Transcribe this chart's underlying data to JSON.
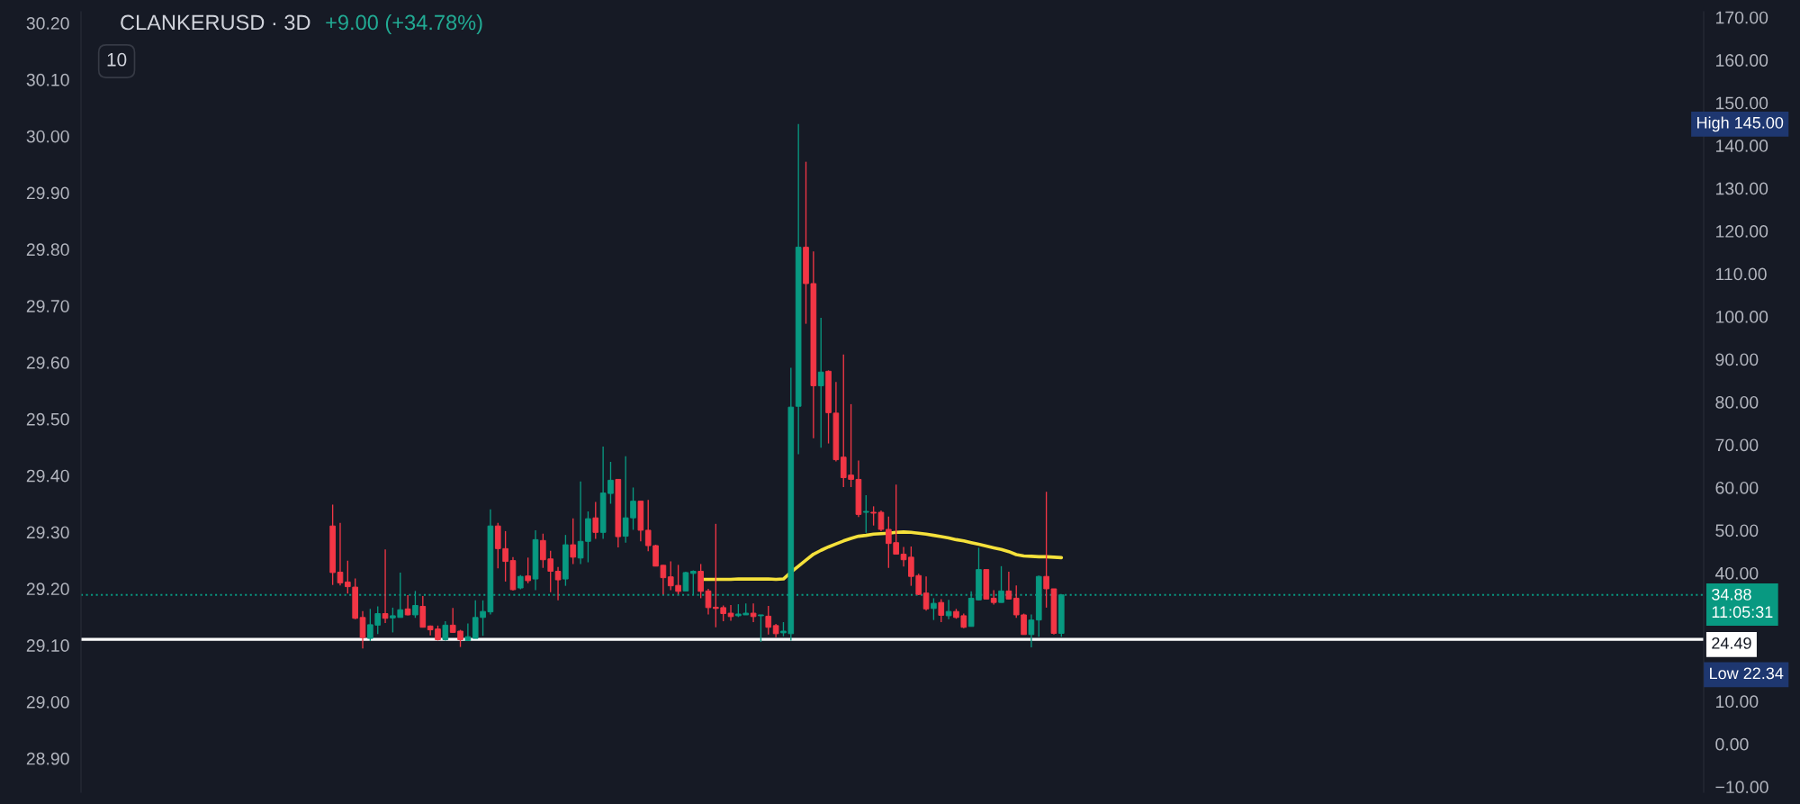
{
  "chart_data": {
    "type": "candlestick",
    "title": "CLANKERUSD · 3D",
    "subtitle": "+9.00 (+34.78%)",
    "categories": [
      null,
      null,
      null,
      null,
      null,
      null,
      null,
      null,
      null,
      null,
      null,
      null,
      null,
      null,
      null,
      null,
      null,
      null,
      null,
      null,
      null,
      null,
      null,
      null,
      null,
      null,
      null,
      null,
      null,
      null,
      null,
      null,
      null,
      null,
      null,
      null,
      null,
      null,
      null,
      null,
      null,
      null,
      null,
      null,
      null,
      null,
      null,
      null,
      null,
      null,
      null,
      null,
      null,
      null,
      null,
      null,
      null,
      null,
      null,
      null,
      null,
      null,
      null,
      null,
      null,
      null,
      null,
      null,
      null,
      null,
      null,
      null,
      null,
      null,
      null,
      null,
      null,
      null,
      null,
      null,
      null,
      null,
      null,
      null,
      null,
      null,
      null,
      null,
      null,
      null,
      null,
      null,
      null,
      null,
      null,
      null,
      null,
      null,
      null,
      null,
      null,
      null,
      null,
      null,
      null,
      null,
      null,
      null,
      null,
      null,
      null,
      null,
      null,
      null,
      null,
      null,
      null,
      null,
      null,
      null,
      null,
      null,
      null,
      null,
      null,
      null,
      null,
      null,
      null,
      null,
      null,
      null,
      null,
      null,
      null,
      null,
      null,
      null,
      null,
      null,
      null,
      null,
      null,
      null,
      null,
      null,
      null,
      null,
      null,
      null,
      null,
      null,
      null,
      null,
      null,
      null,
      null,
      null,
      null,
      null,
      null,
      null,
      null,
      null,
      null,
      null,
      null,
      null,
      null,
      null,
      null,
      null,
      null,
      null,
      null,
      null,
      null,
      null,
      null,
      null,
      null,
      null,
      null,
      null,
      null,
      null,
      null,
      null,
      null,
      null,
      null,
      null,
      null,
      null,
      null,
      null,
      null,
      null,
      null,
      null,
      null,
      null,
      null,
      null,
      null,
      null,
      null,
      null,
      null,
      null,
      null,
      null,
      null,
      null,
      null,
      null
    ],
    "ohlc": [
      null,
      null,
      null,
      null,
      null,
      null,
      null,
      null,
      null,
      null,
      null,
      null,
      null,
      null,
      null,
      null,
      null,
      null,
      null,
      null,
      null,
      null,
      null,
      null,
      null,
      null,
      null,
      null,
      null,
      null,
      null,
      null,
      null,
      [
        51.0,
        56.0,
        37.2,
        40.1
      ],
      [
        40.2,
        51.7,
        37.1,
        37.7
      ],
      [
        37.9,
        42.9,
        35.2,
        36.8
      ],
      [
        36.7,
        38.7,
        29.2,
        29.4
      ],
      [
        29.6,
        31.1,
        22.34,
        24.9
      ],
      [
        24.7,
        31.6,
        24.1,
        27.9
      ],
      [
        27.8,
        32.2,
        25.7,
        30.5
      ],
      [
        30.5,
        45.5,
        28.3,
        29.4
      ],
      [
        29.5,
        31.9,
        26.1,
        30.0
      ],
      [
        29.6,
        40.1,
        29.6,
        31.4
      ],
      [
        31.6,
        34.8,
        30.1,
        30.2
      ],
      [
        30.2,
        35.8,
        29.5,
        32.4
      ],
      [
        32.2,
        34.6,
        27.3,
        27.3
      ],
      [
        27.6,
        27.7,
        25.4,
        26.7
      ],
      [
        26.9,
        27.7,
        24.2,
        24.4
      ],
      [
        24.4,
        28.7,
        24.2,
        27.8
      ],
      [
        27.8,
        31.8,
        26.0,
        26.1
      ],
      [
        26.4,
        26.7,
        22.7,
        24.4
      ],
      [
        24.2,
        28.2,
        24.1,
        25.1
      ],
      [
        24.7,
        33.6,
        24.7,
        29.6
      ],
      [
        29.6,
        33.6,
        25.3,
        31.0
      ],
      [
        30.9,
        54.9,
        30.3,
        51.0
      ],
      [
        51.0,
        51.7,
        41.1,
        45.7
      ],
      [
        45.7,
        49.8,
        38.0,
        42.7
      ],
      [
        42.9,
        43.7,
        35.9,
        36.1
      ],
      [
        36.5,
        39.5,
        36.2,
        39.2
      ],
      [
        39.3,
        43.6,
        37.6,
        38.2
      ],
      [
        38.6,
        50.0,
        36.0,
        47.8
      ],
      [
        47.6,
        49.2,
        41.2,
        43.1
      ],
      [
        43.3,
        45.2,
        35.5,
        40.4
      ],
      [
        40.4,
        41.4,
        33.6,
        38.4
      ],
      [
        38.6,
        48.9,
        37.0,
        46.6
      ],
      [
        46.6,
        52.8,
        42.1,
        43.7
      ],
      [
        43.5,
        61.4,
        42.1,
        47.4
      ],
      [
        47.4,
        54.4,
        42.5,
        52.7
      ],
      [
        52.9,
        56.6,
        48.0,
        49.5
      ],
      [
        49.5,
        69.6,
        48.0,
        58.7
      ],
      [
        58.6,
        66.0,
        56.2,
        61.7
      ],
      [
        61.9,
        61.9,
        46.0,
        48.5
      ],
      [
        48.6,
        67.3,
        47.1,
        52.9
      ],
      [
        52.9,
        60.0,
        50.1,
        56.8
      ],
      [
        56.8,
        56.8,
        47.4,
        50.0
      ],
      [
        50.0,
        57.1,
        45.1,
        46.4
      ],
      [
        46.4,
        46.6,
        41.6,
        41.6
      ],
      [
        41.8,
        41.9,
        35.0,
        38.9
      ],
      [
        39.1,
        42.7,
        36.0,
        37.0
      ],
      [
        37.1,
        41.9,
        35.0,
        35.7
      ],
      [
        35.8,
        40.3,
        35.8,
        40.1
      ],
      [
        39.9,
        40.6,
        34.8,
        40.4
      ],
      [
        40.4,
        42.1,
        34.1,
        35.7
      ],
      [
        35.8,
        36.3,
        30.3,
        31.9
      ],
      [
        32.0,
        51.5,
        27.3,
        31.7
      ],
      [
        31.9,
        32.4,
        28.7,
        30.5
      ],
      [
        30.6,
        32.5,
        28.8,
        29.8
      ],
      [
        30.0,
        32.7,
        29.7,
        30.4
      ],
      [
        30.2,
        32.9,
        30.2,
        30.6
      ],
      [
        30.6,
        32.9,
        28.5,
        29.8
      ],
      [
        30.0,
        30.2,
        23.9,
        30.2
      ],
      [
        29.9,
        32.3,
        25.6,
        27.3
      ],
      [
        27.7,
        28.1,
        25.0,
        25.8
      ],
      [
        26.0,
        28.5,
        25.2,
        26.4
      ],
      [
        25.8,
        88.0,
        24.2,
        78.8
      ],
      [
        79.0,
        145.0,
        67.8,
        116.2
      ],
      [
        116.2,
        136.2,
        98.3,
        107.7
      ],
      [
        107.7,
        115.2,
        71.5,
        83.8
      ],
      [
        83.8,
        99.7,
        69.3,
        87.0
      ],
      [
        87.2,
        87.4,
        70.3,
        77.5
      ],
      [
        77.4,
        84.7,
        66.1,
        66.5
      ],
      [
        67.1,
        91.1,
        60.1,
        62.3
      ],
      [
        62.9,
        79.5,
        60.1,
        61.9
      ],
      [
        61.9,
        66.3,
        53.1,
        53.7
      ],
      [
        54.2,
        58.2,
        49.4,
        54.4
      ],
      [
        54.2,
        55.6,
        51.1,
        54.0
      ],
      [
        54.2,
        54.6,
        49.8,
        50.2
      ],
      [
        50.2,
        53.2,
        41.2,
        46.9
      ],
      [
        47.1,
        60.7,
        44.4,
        44.4
      ],
      [
        44.4,
        46.1,
        41.5,
        43.1
      ],
      [
        43.7,
        46.2,
        37.0,
        39.2
      ],
      [
        39.4,
        39.8,
        34.8,
        35.0
      ],
      [
        35.3,
        39.2,
        31.2,
        31.6
      ],
      [
        31.7,
        34.1,
        29.0,
        32.9
      ],
      [
        33.1,
        33.9,
        28.5,
        30.1
      ],
      [
        30.0,
        33.7,
        29.2,
        31.0
      ],
      [
        31.0,
        31.6,
        29.3,
        29.6
      ],
      [
        30.0,
        30.5,
        27.1,
        27.3
      ],
      [
        27.5,
        35.7,
        27.5,
        34.1
      ],
      [
        33.7,
        45.9,
        33.6,
        40.8
      ],
      [
        40.8,
        40.8,
        33.9,
        33.9
      ],
      [
        34.1,
        36.0,
        32.6,
        33.1
      ],
      [
        33.1,
        41.6,
        33.1,
        35.8
      ],
      [
        35.8,
        40.3,
        33.8,
        33.9
      ],
      [
        34.1,
        37.1,
        29.5,
        30.2
      ],
      [
        30.2,
        30.5,
        25.6,
        25.6
      ],
      [
        25.6,
        30.3,
        22.6,
        29.0
      ],
      [
        29.0,
        39.4,
        25.1,
        39.2
      ],
      [
        39.2,
        59.0,
        31.9,
        36.3
      ],
      [
        36.3,
        36.3,
        25.6,
        25.88
      ],
      [
        25.88,
        34.88,
        25.1,
        34.88
      ],
      null,
      null,
      null,
      null,
      null,
      null,
      null,
      null,
      null,
      null,
      null,
      null,
      null,
      null,
      null,
      null,
      null,
      null,
      null,
      null,
      null,
      null,
      null,
      null,
      null,
      null,
      null,
      null,
      null,
      null,
      null,
      null,
      null,
      null,
      null,
      null,
      null,
      null,
      null,
      null,
      null,
      null,
      null,
      null,
      null,
      null,
      null,
      null,
      null,
      null,
      null,
      null,
      null,
      null,
      null,
      null,
      null,
      null,
      null,
      null,
      null,
      null,
      null,
      null,
      null,
      null,
      null,
      null,
      null,
      null,
      null,
      null,
      null,
      null,
      null,
      null,
      null,
      null,
      null,
      null,
      null,
      null,
      null,
      null,
      null
    ],
    "colors": [
      null,
      null,
      null,
      null,
      null,
      null,
      null,
      null,
      null,
      null,
      null,
      null,
      null,
      null,
      null,
      null,
      null,
      null,
      null,
      null,
      null,
      null,
      null,
      null,
      null,
      null,
      null,
      null,
      null,
      null,
      null,
      null,
      null,
      "#f23645",
      "#f23645",
      "#f23645",
      "#f23645",
      "#f23645",
      "#089981",
      "#089981",
      "#f23645",
      "#089981",
      "#089981",
      "#f23645",
      "#089981",
      "#f23645",
      "#f23645",
      "#f23645",
      "#089981",
      "#f23645",
      "#f23645",
      "#089981",
      "#089981",
      "#089981",
      "#089981",
      "#f23645",
      "#f23645",
      "#f23645",
      "#089981",
      "#f23645",
      "#089981",
      "#f23645",
      "#f23645",
      "#f23645",
      "#089981",
      "#f23645",
      "#089981",
      "#089981",
      "#f23645",
      "#089981",
      "#089981",
      "#f23645",
      "#089981",
      "#089981",
      "#f23645",
      "#f23645",
      "#f23645",
      "#f23645",
      "#f23645",
      "#f23645",
      "#089981",
      "#089981",
      "#f23645",
      "#f23645",
      "#f23645",
      "#f23645",
      "#f23645",
      "#089981",
      "#089981",
      "#f23645",
      "#089981",
      "#f23645",
      "#f23645",
      "#089981",
      "#089981",
      "#089981",
      "#f23645",
      "#f23645",
      "#089981",
      "#f23645",
      "#f23645",
      "#f23645",
      "#f23645",
      "#f23645",
      "#089981",
      "#f23645",
      "#f23645",
      "#f23645",
      "#f23645",
      "#f23645",
      "#f23645",
      "#f23645",
      "#f23645",
      "#089981",
      "#f23645",
      "#089981",
      "#f23645",
      "#f23645",
      "#089981",
      "#089981",
      "#f23645",
      "#f23645",
      "#089981",
      "#f23645",
      "#f23645",
      "#f23645",
      "#089981",
      "#089981",
      "#f23645",
      "#f23645",
      "#089981",
      null,
      null,
      null,
      null,
      null,
      null,
      null,
      null,
      null,
      null,
      null,
      null,
      null,
      null,
      null,
      null,
      null,
      null,
      null,
      null,
      null,
      null,
      null,
      null,
      null,
      null,
      null,
      null,
      null,
      null,
      null,
      null,
      null,
      null,
      null,
      null,
      null,
      null,
      null,
      null,
      null,
      null,
      null,
      null,
      null,
      null,
      null,
      null,
      null,
      null,
      null,
      null,
      null,
      null,
      null,
      null,
      null,
      null,
      null,
      null,
      null,
      null,
      null,
      null,
      null,
      null,
      null,
      null,
      null,
      null,
      null,
      null,
      null,
      null,
      null,
      null,
      null,
      null,
      null,
      null,
      null,
      null,
      null,
      null,
      null
    ],
    "series": [
      {
        "type": "line",
        "color": "#f5e13b",
        "values": [
          null,
          null,
          null,
          null,
          null,
          null,
          null,
          null,
          null,
          null,
          null,
          null,
          null,
          null,
          null,
          null,
          null,
          null,
          null,
          null,
          null,
          null,
          null,
          null,
          null,
          null,
          null,
          null,
          null,
          null,
          null,
          null,
          null,
          null,
          null,
          null,
          null,
          null,
          null,
          null,
          null,
          null,
          null,
          null,
          null,
          null,
          null,
          null,
          null,
          null,
          null,
          null,
          null,
          null,
          null,
          null,
          null,
          null,
          null,
          null,
          null,
          null,
          null,
          null,
          null,
          null,
          null,
          null,
          null,
          null,
          null,
          null,
          null,
          null,
          null,
          null,
          null,
          null,
          null,
          null,
          null,
          null,
          38.5,
          38.5,
          38.5,
          38.5,
          38.5,
          38.6,
          38.6,
          38.6,
          38.6,
          38.6,
          38.5,
          38.6,
          40.2,
          41.6,
          43.0,
          44.4,
          45.3,
          46.1,
          46.8,
          47.5,
          48.1,
          48.6,
          48.8,
          49.1,
          49.2,
          49.3,
          49.5,
          49.6,
          49.5,
          49.3,
          49.1,
          48.8,
          48.5,
          48.2,
          47.8,
          47.5,
          47.1,
          46.7,
          46.3,
          45.9,
          45.5,
          45.0,
          44.3,
          44.0,
          43.9,
          43.8,
          43.8,
          43.7,
          43.6,
          null,
          null,
          null,
          null,
          null,
          null,
          null,
          null,
          null,
          null,
          null,
          null,
          null,
          null,
          null,
          null,
          null,
          null,
          null,
          null,
          null,
          null,
          null,
          null,
          null,
          null,
          null,
          null,
          null,
          null,
          null,
          null,
          null,
          null,
          null,
          null,
          null,
          null,
          null,
          null,
          null,
          null,
          null,
          null,
          null,
          null,
          null,
          null,
          null,
          null,
          null,
          null,
          null,
          null,
          null,
          null,
          null,
          null,
          null,
          null,
          null,
          null,
          null,
          null,
          null,
          null,
          null,
          null,
          null,
          null,
          null,
          null,
          null,
          null,
          null,
          null,
          null,
          null,
          null,
          null,
          null,
          null,
          null,
          null,
          null
        ]
      }
    ],
    "ylim": [
      -11.3,
      171.3
    ],
    "yticks": [
      {
        "value": -10,
        "label": "−10.00"
      },
      {
        "value": 0,
        "label": "0.00"
      },
      {
        "value": 10,
        "label": "10.00"
      },
      {
        "value": 40,
        "label": "40.00"
      },
      {
        "value": 50,
        "label": "50.00"
      },
      {
        "value": 60,
        "label": "60.00"
      },
      {
        "value": 70,
        "label": "70.00"
      },
      {
        "value": 80,
        "label": "80.00"
      },
      {
        "value": 90,
        "label": "90.00"
      },
      {
        "value": 100,
        "label": "100.00"
      },
      {
        "value": 110,
        "label": "110.00"
      },
      {
        "value": 120,
        "label": "120.00"
      },
      {
        "value": 130,
        "label": "130.00"
      },
      {
        "value": 140,
        "label": "140.00"
      },
      {
        "value": 150,
        "label": "150.00"
      },
      {
        "value": 160,
        "label": "160.00"
      },
      {
        "value": 170,
        "label": "170.00"
      }
    ],
    "y2lim": [
      28.84,
      30.22
    ],
    "y2ticks": [
      {
        "value": 28.9,
        "label": "28.90"
      },
      {
        "value": 29.0,
        "label": "29.00"
      },
      {
        "value": 29.1,
        "label": "29.10"
      },
      {
        "value": 29.2,
        "label": "29.20"
      },
      {
        "value": 29.3,
        "label": "29.30"
      },
      {
        "value": 29.4,
        "label": "29.40"
      },
      {
        "value": 29.5,
        "label": "29.50"
      },
      {
        "value": 29.6,
        "label": "29.60"
      },
      {
        "value": 29.7,
        "label": "29.70"
      },
      {
        "value": 29.8,
        "label": "29.80"
      },
      {
        "value": 29.9,
        "label": "29.90"
      },
      {
        "value": 30.0,
        "label": "30.00"
      },
      {
        "value": 30.1,
        "label": "30.10"
      },
      {
        "value": 30.2,
        "label": "30.20"
      }
    ],
    "ref_lines": [
      {
        "axis": "y",
        "value": 24.49,
        "label": "24.49",
        "color": "#ffffff",
        "line_style": "solid"
      },
      {
        "axis": "y",
        "value": 34.88,
        "label": "34.88\n11:05:31",
        "color": "#089981",
        "line_style": "dotted"
      }
    ],
    "annotations": [
      "10",
      "High 145.00",
      "Low 22.34"
    ]
  }
}
